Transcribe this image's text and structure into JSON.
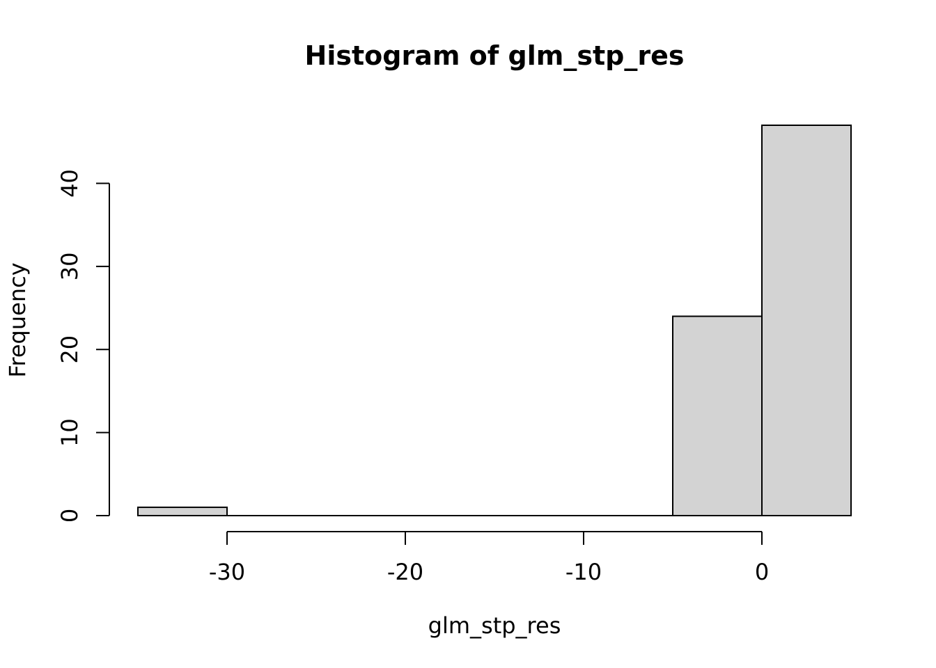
{
  "chart_data": {
    "type": "bar",
    "title": "Histogram of glm_stp_res",
    "xlabel": "glm_stp_res",
    "ylabel": "Frequency",
    "bins": [
      {
        "from": -35,
        "to": -30,
        "count": 1
      },
      {
        "from": -30,
        "to": -25,
        "count": 0
      },
      {
        "from": -25,
        "to": -20,
        "count": 0
      },
      {
        "from": -20,
        "to": -15,
        "count": 0
      },
      {
        "from": -15,
        "to": -10,
        "count": 0
      },
      {
        "from": -10,
        "to": -5,
        "count": 0
      },
      {
        "from": -5,
        "to": 0,
        "count": 24
      },
      {
        "from": 0,
        "to": 5,
        "count": 47
      }
    ],
    "xticks": [
      -30,
      -20,
      -10,
      0
    ],
    "yticks": [
      0,
      10,
      20,
      30,
      40
    ],
    "xlim": [
      -35,
      5
    ],
    "ylim": [
      0,
      47
    ],
    "grid": false,
    "colors": {
      "bar_fill": "#d3d3d3",
      "bar_stroke": "#000000"
    }
  }
}
